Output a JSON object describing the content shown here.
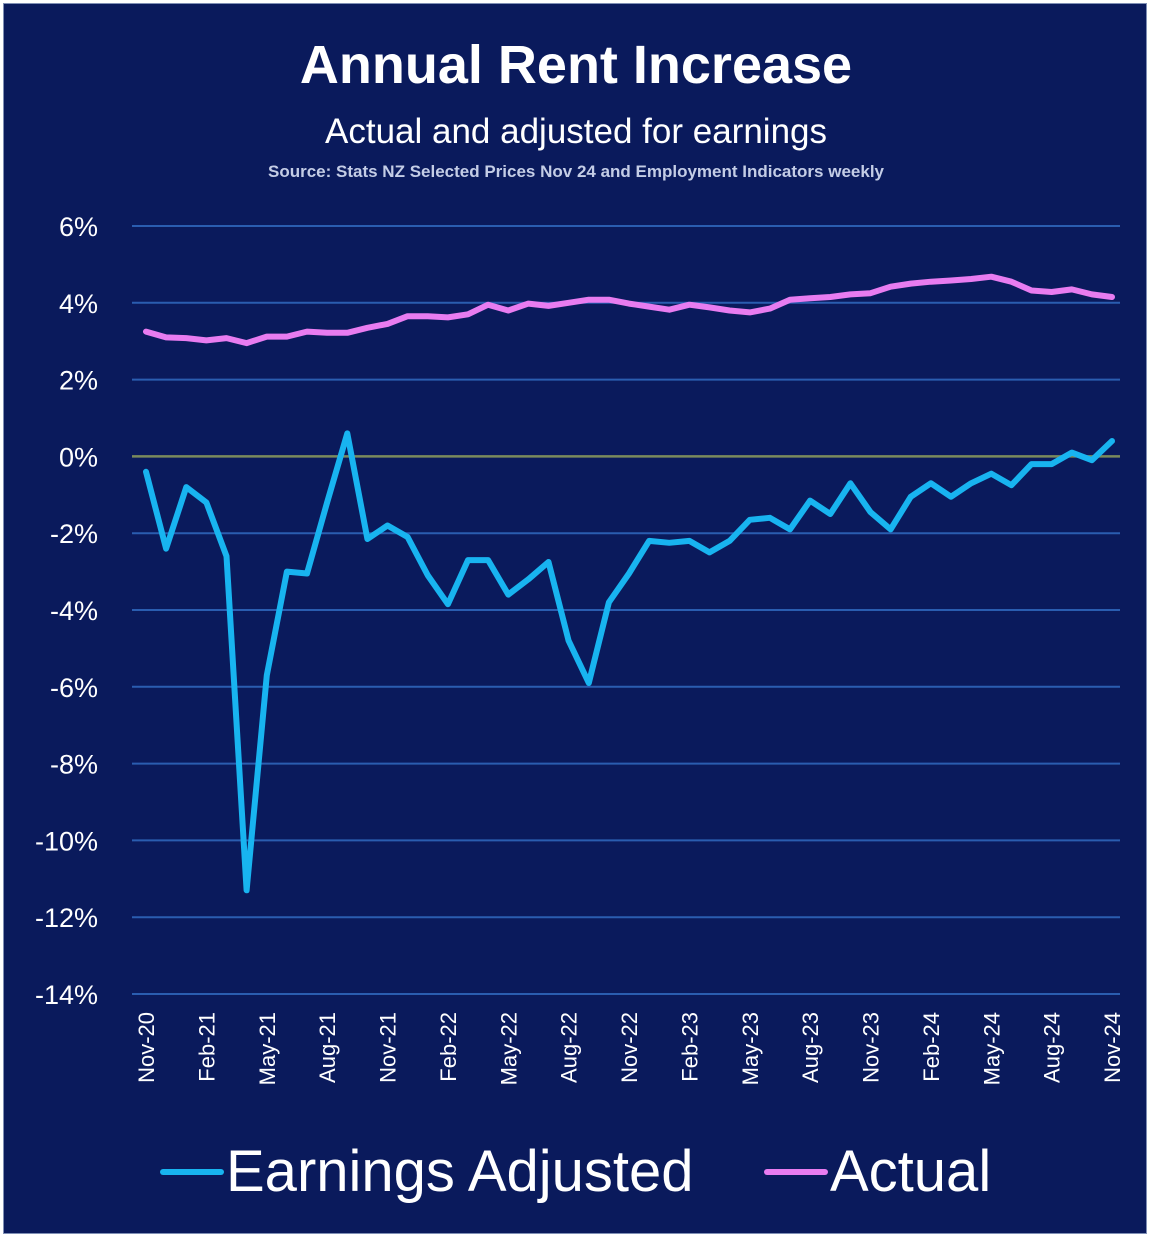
{
  "chart_data": {
    "type": "line",
    "title": "Annual Rent Increase",
    "subtitle": "Actual and adjusted for earnings",
    "source": "Source: Stats NZ Selected Prices Nov 24 and Employment Indicators weekly",
    "ylim": [
      -14,
      6
    ],
    "yticks": [
      6,
      4,
      2,
      0,
      -2,
      -4,
      -6,
      -8,
      -10,
      -12,
      -14
    ],
    "ytick_labels": [
      "6%",
      "4%",
      "2%",
      "0%",
      "-2%",
      "-4%",
      "-6%",
      "-8%",
      "-10%",
      "-12%",
      "-14%"
    ],
    "x_count": 49,
    "xtick_labels": [
      "Nov-20",
      "Feb-21",
      "May-21",
      "Aug-21",
      "Nov-21",
      "Feb-22",
      "May-22",
      "Aug-22",
      "Nov-22",
      "Feb-23",
      "May-23",
      "Aug-23",
      "Nov-23",
      "Feb-24",
      "May-24",
      "Aug-24",
      "Nov-24"
    ],
    "xtick_interval": 3,
    "grid": true,
    "legend": "bottom",
    "colors": {
      "background": "#0a1a5c",
      "grid": "#2a5db0",
      "zero_line": "#7a8a5c",
      "earnings_adjusted": "#18b4f0",
      "actual": "#e87cf0"
    },
    "series": [
      {
        "name": "Earnings Adjusted",
        "color": "#18b4f0",
        "values": [
          -0.4,
          -2.4,
          -0.8,
          -1.2,
          -2.6,
          -11.3,
          -5.7,
          -3.0,
          -3.05,
          -1.2,
          0.6,
          -2.15,
          -1.8,
          -2.1,
          -3.1,
          -3.85,
          -2.7,
          -2.7,
          -3.6,
          -3.2,
          -2.75,
          -4.8,
          -5.9,
          -3.8,
          -3.05,
          -2.2,
          -2.25,
          -2.2,
          -2.5,
          -2.2,
          -1.65,
          -1.6,
          -1.9,
          -1.15,
          -1.5,
          -0.7,
          -1.45,
          -1.9,
          -1.05,
          -0.7,
          -1.05,
          -0.7,
          -0.45,
          -0.75,
          -0.2,
          -0.2,
          0.1,
          -0.1,
          0.4
        ]
      },
      {
        "name": "Actual",
        "color": "#e87cf0",
        "values": [
          3.25,
          3.1,
          3.08,
          3.02,
          3.08,
          2.95,
          3.12,
          3.12,
          3.25,
          3.22,
          3.22,
          3.35,
          3.45,
          3.65,
          3.65,
          3.62,
          3.7,
          3.95,
          3.8,
          3.98,
          3.92,
          4.0,
          4.08,
          4.08,
          3.98,
          3.9,
          3.82,
          3.95,
          3.88,
          3.8,
          3.75,
          3.85,
          4.08,
          4.12,
          4.15,
          4.22,
          4.25,
          4.42,
          4.5,
          4.55,
          4.58,
          4.62,
          4.68,
          4.55,
          4.32,
          4.28,
          4.35,
          4.22,
          4.15
        ]
      }
    ]
  }
}
